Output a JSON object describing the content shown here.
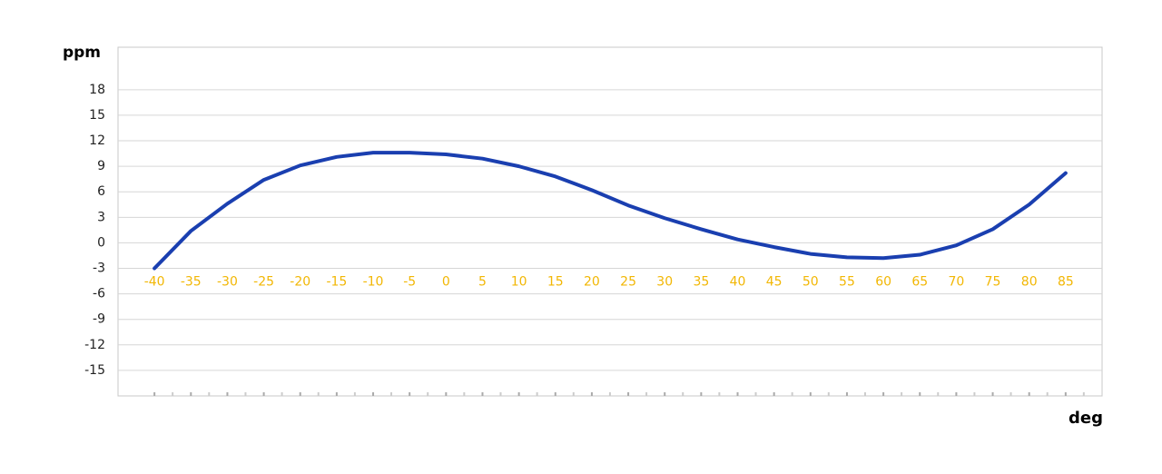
{
  "chart_data": {
    "type": "line",
    "y_label": "ppm",
    "x_label": "deg",
    "x": [
      -40,
      -35,
      -30,
      -25,
      -20,
      -15,
      -10,
      -5,
      0,
      5,
      10,
      15,
      20,
      25,
      30,
      35,
      40,
      45,
      50,
      55,
      60,
      65,
      70,
      75,
      80,
      85
    ],
    "values": [
      -3,
      1.4,
      4.6,
      7.4,
      9.1,
      10.1,
      10.6,
      10.6,
      10.4,
      9.9,
      9.0,
      7.8,
      6.2,
      4.4,
      2.9,
      1.6,
      0.4,
      -0.5,
      -1.3,
      -1.7,
      -1.8,
      -1.4,
      -0.3,
      1.6,
      4.5,
      8.2
    ],
    "color": "#1a3fb0",
    "xlim": [
      -45,
      90
    ],
    "ylim": [
      -18,
      23
    ],
    "xticks": [
      -40,
      -35,
      -30,
      -25,
      -20,
      -15,
      -10,
      -5,
      0,
      5,
      10,
      15,
      20,
      25,
      30,
      35,
      40,
      45,
      50,
      55,
      60,
      65,
      70,
      75,
      80,
      85
    ],
    "yticks": [
      -15,
      -12,
      -9,
      -6,
      -3,
      0,
      3,
      6,
      9,
      12,
      15,
      18
    ],
    "grid": true
  }
}
